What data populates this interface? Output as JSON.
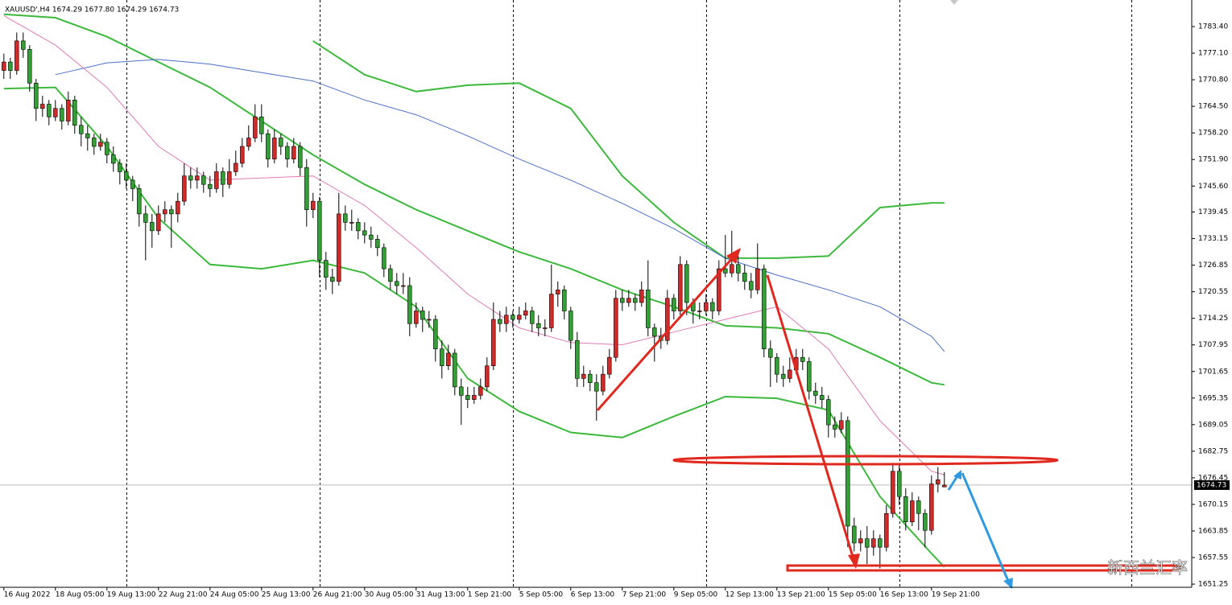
{
  "chart_data": {
    "type": "candlestick",
    "title": "XAUUSD',H4  1674.29 1677.80 1674.29 1674.73",
    "watermark": "新西兰汇率",
    "up_color": "#d42a2a",
    "down_color": "#33a033",
    "wick_color": "#000000",
    "xlim": [
      -0.6,
      184.4
    ],
    "ylim": [
      1650.5,
      1789.7
    ],
    "xgrid": [
      19,
      49,
      79,
      109,
      139,
      175
    ],
    "xticks": [
      {
        "value": 0,
        "label": "16 Aug 2022"
      },
      {
        "value": 8,
        "label": "18 Aug 05:00"
      },
      {
        "value": 16,
        "label": "19 Aug 13:00"
      },
      {
        "value": 24,
        "label": "22 Aug 21:00"
      },
      {
        "value": 32,
        "label": "24 Aug 05:00"
      },
      {
        "value": 40,
        "label": "25 Aug 13:00"
      },
      {
        "value": 48,
        "label": "26 Aug 21:00"
      },
      {
        "value": 56,
        "label": "30 Aug 05:00"
      },
      {
        "value": 64,
        "label": "31 Aug 13:00"
      },
      {
        "value": 72,
        "label": "1 Sep 21:00"
      },
      {
        "value": 80,
        "label": "5 Sep 05:00"
      },
      {
        "value": 88,
        "label": "6 Sep 13:00"
      },
      {
        "value": 96,
        "label": "7 Sep 21:00"
      },
      {
        "value": 104,
        "label": "9 Sep 05:00"
      },
      {
        "value": 112,
        "label": "12 Sep 13:00"
      },
      {
        "value": 120,
        "label": "13 Sep 21:00"
      },
      {
        "value": 128,
        "label": "15 Sep 05:00"
      },
      {
        "value": 136,
        "label": "16 Sep 13:00"
      },
      {
        "value": 144,
        "label": "19 Sep 21:00"
      }
    ],
    "yticks": [
      {
        "value": 1783.4,
        "label": "1783.40"
      },
      {
        "value": 1777.1,
        "label": "1777.10"
      },
      {
        "value": 1770.8,
        "label": "1770.80"
      },
      {
        "value": 1764.5,
        "label": "1764.50"
      },
      {
        "value": 1758.2,
        "label": "1758.20"
      },
      {
        "value": 1751.9,
        "label": "1751.90"
      },
      {
        "value": 1745.6,
        "label": "1745.60"
      },
      {
        "value": 1739.45,
        "label": "1739.45"
      },
      {
        "value": 1733.15,
        "label": "1733.15"
      },
      {
        "value": 1726.85,
        "label": "1726.85"
      },
      {
        "value": 1720.55,
        "label": "1720.55"
      },
      {
        "value": 1714.25,
        "label": "1714.25"
      },
      {
        "value": 1707.95,
        "label": "1707.95"
      },
      {
        "value": 1701.65,
        "label": "1701.65"
      },
      {
        "value": 1695.35,
        "label": "1695.35"
      },
      {
        "value": 1689.05,
        "label": "1689.05"
      },
      {
        "value": 1682.75,
        "label": "1682.75"
      },
      {
        "value": 1676.45,
        "label": "1676.45"
      },
      {
        "value": 1670.15,
        "label": "1670.15"
      },
      {
        "value": 1663.85,
        "label": "1663.85"
      },
      {
        "value": 1657.55,
        "label": "1657.55"
      },
      {
        "value": 1651.25,
        "label": "1651.25"
      }
    ],
    "last_price": {
      "value": 1674.73,
      "label": "1674.73"
    },
    "ohlc": [
      [
        1773,
        1777,
        1771,
        1775
      ],
      [
        1775,
        1776,
        1771,
        1773
      ],
      [
        1773,
        1782,
        1772,
        1780
      ],
      [
        1780,
        1782,
        1776,
        1778
      ],
      [
        1778,
        1779,
        1768,
        1770
      ],
      [
        1770,
        1771,
        1761,
        1764
      ],
      [
        1764,
        1767,
        1762,
        1765
      ],
      [
        1765,
        1766,
        1760,
        1762
      ],
      [
        1762,
        1766,
        1761,
        1764
      ],
      [
        1764,
        1765,
        1759,
        1761
      ],
      [
        1761,
        1768,
        1760,
        1766
      ],
      [
        1766,
        1767,
        1758,
        1760
      ],
      [
        1760,
        1762,
        1755,
        1758
      ],
      [
        1758,
        1760,
        1754,
        1757
      ],
      [
        1757,
        1758,
        1753,
        1755
      ],
      [
        1755,
        1758,
        1754,
        1756
      ],
      [
        1756,
        1757,
        1751,
        1753
      ],
      [
        1753,
        1755,
        1749,
        1751
      ],
      [
        1751,
        1752,
        1746,
        1749
      ],
      [
        1749,
        1751,
        1745,
        1747
      ],
      [
        1747,
        1748,
        1742,
        1745
      ],
      [
        1745,
        1746,
        1736,
        1739
      ],
      [
        1739,
        1741,
        1728,
        1737
      ],
      [
        1737,
        1739,
        1731,
        1735
      ],
      [
        1735,
        1741,
        1734,
        1739
      ],
      [
        1739,
        1742,
        1737,
        1740
      ],
      [
        1740,
        1741,
        1731,
        1739
      ],
      [
        1739,
        1744,
        1737,
        1742
      ],
      [
        1742,
        1751,
        1741,
        1748
      ],
      [
        1748,
        1750,
        1745,
        1747
      ],
      [
        1747,
        1750,
        1745,
        1748
      ],
      [
        1748,
        1749,
        1744,
        1746
      ],
      [
        1746,
        1748,
        1743,
        1745
      ],
      [
        1745,
        1751,
        1744,
        1749
      ],
      [
        1749,
        1750,
        1743,
        1746
      ],
      [
        1746,
        1752,
        1745,
        1749
      ],
      [
        1749,
        1754,
        1748,
        1751
      ],
      [
        1751,
        1757,
        1750,
        1755
      ],
      [
        1755,
        1760,
        1754,
        1757
      ],
      [
        1757,
        1765,
        1756,
        1762
      ],
      [
        1762,
        1765,
        1756,
        1758
      ],
      [
        1758,
        1759,
        1750,
        1752
      ],
      [
        1752,
        1759,
        1751,
        1757
      ],
      [
        1757,
        1758,
        1753,
        1755
      ],
      [
        1755,
        1756,
        1750,
        1752
      ],
      [
        1752,
        1757,
        1751,
        1755
      ],
      [
        1755,
        1756,
        1748,
        1750
      ],
      [
        1750,
        1752,
        1736,
        1740
      ],
      [
        1740,
        1744,
        1738,
        1742
      ],
      [
        1742,
        1743,
        1724,
        1728
      ],
      [
        1728,
        1730,
        1721,
        1724
      ],
      [
        1724,
        1726,
        1720,
        1723
      ],
      [
        1723,
        1744,
        1722,
        1739
      ],
      [
        1739,
        1741,
        1735,
        1737
      ],
      [
        1737,
        1740,
        1735,
        1737
      ],
      [
        1737,
        1738,
        1733,
        1735
      ],
      [
        1735,
        1737,
        1732,
        1734
      ],
      [
        1734,
        1736,
        1731,
        1733
      ],
      [
        1733,
        1734,
        1729,
        1731
      ],
      [
        1731,
        1732,
        1724,
        1726
      ],
      [
        1726,
        1727,
        1721,
        1723
      ],
      [
        1723,
        1725,
        1720,
        1722
      ],
      [
        1722,
        1725,
        1720,
        1722
      ],
      [
        1722,
        1724,
        1710,
        1713
      ],
      [
        1713,
        1718,
        1712,
        1716
      ],
      [
        1716,
        1717,
        1711,
        1714
      ],
      [
        1714,
        1716,
        1712,
        1714
      ],
      [
        1714,
        1715,
        1704,
        1707
      ],
      [
        1707,
        1709,
        1700,
        1703
      ],
      [
        1703,
        1708,
        1702,
        1706
      ],
      [
        1706,
        1707,
        1696,
        1698
      ],
      [
        1698,
        1700,
        1689,
        1696
      ],
      [
        1696,
        1698,
        1693,
        1695
      ],
      [
        1695,
        1698,
        1694,
        1696
      ],
      [
        1696,
        1700,
        1695,
        1698
      ],
      [
        1698,
        1705,
        1697,
        1703
      ],
      [
        1703,
        1718,
        1702,
        1714
      ],
      [
        1714,
        1716,
        1711,
        1713
      ],
      [
        1713,
        1717,
        1711,
        1715
      ],
      [
        1715,
        1716,
        1712,
        1714
      ],
      [
        1714,
        1717,
        1713,
        1715
      ],
      [
        1715,
        1718,
        1714,
        1716
      ],
      [
        1716,
        1717,
        1711,
        1713
      ],
      [
        1713,
        1715,
        1710,
        1712
      ],
      [
        1712,
        1714,
        1710,
        1712
      ],
      [
        1712,
        1727,
        1711,
        1720
      ],
      [
        1720,
        1723,
        1717,
        1721
      ],
      [
        1721,
        1722,
        1714,
        1716
      ],
      [
        1716,
        1717,
        1707,
        1709
      ],
      [
        1709,
        1711,
        1698,
        1700
      ],
      [
        1700,
        1703,
        1698,
        1701
      ],
      [
        1701,
        1702,
        1697,
        1699
      ],
      [
        1699,
        1701,
        1690,
        1697
      ],
      [
        1697,
        1703,
        1696,
        1701
      ],
      [
        1701,
        1707,
        1700,
        1705
      ],
      [
        1705,
        1721,
        1704,
        1719
      ],
      [
        1719,
        1721,
        1716,
        1718
      ],
      [
        1718,
        1721,
        1717,
        1719
      ],
      [
        1719,
        1720,
        1716,
        1718
      ],
      [
        1718,
        1723,
        1717,
        1721
      ],
      [
        1721,
        1728,
        1710,
        1712
      ],
      [
        1712,
        1713,
        1704,
        1710
      ],
      [
        1710,
        1712,
        1707,
        1709
      ],
      [
        1709,
        1721,
        1708,
        1719
      ],
      [
        1719,
        1720,
        1714,
        1716
      ],
      [
        1716,
        1729,
        1715,
        1727
      ],
      [
        1727,
        1728,
        1715,
        1718
      ],
      [
        1718,
        1719,
        1713,
        1716
      ],
      [
        1716,
        1718,
        1714,
        1716
      ],
      [
        1716,
        1720,
        1715,
        1718
      ],
      [
        1718,
        1719,
        1714,
        1716
      ],
      [
        1716,
        1728,
        1715,
        1726
      ],
      [
        1726,
        1734,
        1724,
        1725
      ],
      [
        1725,
        1735,
        1724,
        1727
      ],
      [
        1727,
        1729,
        1723,
        1725
      ],
      [
        1725,
        1727,
        1721,
        1723
      ],
      [
        1723,
        1725,
        1719,
        1721
      ],
      [
        1721,
        1732,
        1720,
        1726
      ],
      [
        1726,
        1727,
        1705,
        1707
      ],
      [
        1707,
        1709,
        1698,
        1705
      ],
      [
        1705,
        1706,
        1699,
        1701
      ],
      [
        1701,
        1703,
        1698,
        1700
      ],
      [
        1700,
        1705,
        1699,
        1702
      ],
      [
        1702,
        1707,
        1701,
        1705
      ],
      [
        1705,
        1707,
        1702,
        1704
      ],
      [
        1704,
        1705,
        1695,
        1697
      ],
      [
        1697,
        1699,
        1694,
        1696
      ],
      [
        1696,
        1698,
        1693,
        1695
      ],
      [
        1695,
        1696,
        1686,
        1689
      ],
      [
        1689,
        1691,
        1686,
        1688
      ],
      [
        1688,
        1692,
        1687,
        1690
      ],
      [
        1690,
        1691,
        1660,
        1665
      ],
      [
        1665,
        1667,
        1659,
        1661
      ],
      [
        1661,
        1664,
        1659,
        1662
      ],
      [
        1662,
        1665,
        1656,
        1660
      ],
      [
        1660,
        1664,
        1658,
        1662
      ],
      [
        1662,
        1663,
        1655,
        1660
      ],
      [
        1660,
        1670,
        1659,
        1668
      ],
      [
        1668,
        1680,
        1667,
        1678
      ],
      [
        1678,
        1680,
        1670,
        1672
      ],
      [
        1672,
        1674,
        1664,
        1666
      ],
      [
        1666,
        1673,
        1665,
        1671
      ],
      [
        1671,
        1672,
        1664,
        1668
      ],
      [
        1668,
        1669,
        1660,
        1664
      ],
      [
        1664,
        1677,
        1663,
        1675
      ],
      [
        1675,
        1679,
        1673,
        1676
      ],
      [
        1674.29,
        1677.8,
        1674.29,
        1674.73
      ]
    ],
    "indicator_x": [
      0,
      8,
      16,
      24,
      32,
      40,
      48,
      56,
      64,
      72,
      80,
      88,
      96,
      104,
      112,
      120,
      128,
      136,
      144,
      146
    ],
    "series": [
      {
        "color": "#3cb93c",
        "values": [
          null,
          null,
          null,
          null,
          null,
          null,
          1780,
          1772,
          1768,
          1769.5,
          1770,
          1764,
          1748,
          1737,
          1728.5,
          1728.5,
          1729,
          1740.5,
          1741.6,
          1741.6
        ]
      },
      {
        "color": "#3cb93c",
        "values": [
          1786.3,
          1785.5,
          1781,
          1775,
          1769,
          1761,
          1753,
          1746,
          1740,
          1735,
          1730,
          1726,
          1721,
          1717,
          1712.5,
          1712,
          1710.6,
          1705,
          1699,
          1698.5
        ]
      },
      {
        "color": "#3cb93c",
        "values": [
          1768.7,
          1769,
          1755,
          1738,
          1727,
          1726,
          1728,
          1725,
          1717,
          1700,
          1692.2,
          1687.2,
          1686,
          1691,
          1695.7,
          1695.3,
          1692.5,
          1672,
          1658.5,
          1655.3
        ]
      },
      {
        "color": "#4a6fc8",
        "values": [
          null,
          1772,
          1774.8,
          1775.6,
          1774.5,
          1772.5,
          1770.5,
          1766,
          1762.5,
          1757.5,
          1752,
          1747,
          1741.5,
          1735.5,
          1728.5,
          1724.5,
          1721,
          1717,
          1710,
          1706.4
        ]
      },
      {
        "color": "#e07ab8",
        "values": [
          1786,
          1779,
          1769,
          1755,
          1747,
          1747.5,
          1748,
          1741,
          1731,
          1720,
          1712,
          1708.5,
          1708,
          1711,
          1714,
          1717,
          1707,
          1690,
          1678,
          1677.2
        ]
      }
    ]
  }
}
